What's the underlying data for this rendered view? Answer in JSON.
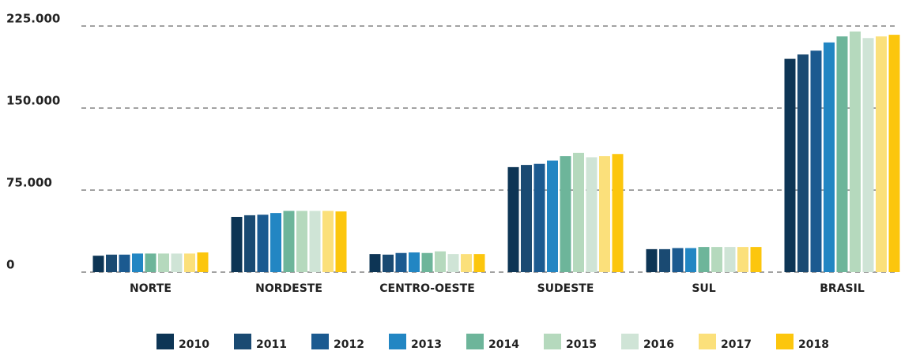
{
  "chart_data": {
    "type": "bar",
    "categories": [
      "NORTE",
      "NORDESTE",
      "CENTRO-OESTE",
      "SUDESTE",
      "SUL",
      "BRASIL"
    ],
    "series": [
      {
        "name": "2010",
        "color": "#0d3555",
        "values": [
          15000,
          50500,
          16500,
          96000,
          21000,
          195000
        ]
      },
      {
        "name": "2011",
        "color": "#1a4a72",
        "values": [
          16000,
          52000,
          16000,
          98000,
          21000,
          199000
        ]
      },
      {
        "name": "2012",
        "color": "#1b5a90",
        "values": [
          16000,
          52500,
          17500,
          99000,
          22000,
          202500
        ]
      },
      {
        "name": "2013",
        "color": "#2286c3",
        "values": [
          17000,
          54000,
          18000,
          102000,
          22000,
          210000
        ]
      },
      {
        "name": "2014",
        "color": "#6db59a",
        "values": [
          17000,
          56000,
          17500,
          106000,
          23000,
          215500
        ]
      },
      {
        "name": "2015",
        "color": "#b5d9bd",
        "values": [
          17000,
          56000,
          19000,
          109000,
          23000,
          220000
        ]
      },
      {
        "name": "2016",
        "color": "#cfe4d6",
        "values": [
          17000,
          56000,
          16500,
          105000,
          23000,
          214000
        ]
      },
      {
        "name": "2017",
        "color": "#fbe07b",
        "values": [
          17000,
          56000,
          16500,
          106000,
          23000,
          215500
        ]
      },
      {
        "name": "2018",
        "color": "#fcc60d",
        "values": [
          18000,
          55500,
          16500,
          108000,
          23000,
          217000
        ]
      }
    ],
    "ylim": [
      0,
      225000
    ],
    "yticks": [
      0,
      {
        "value": 75000,
        "label": "75.000"
      },
      {
        "value": 150000,
        "label": "150.000"
      },
      {
        "value": 225000,
        "label": "225.000"
      }
    ],
    "grid": true,
    "legend": "bottom"
  }
}
